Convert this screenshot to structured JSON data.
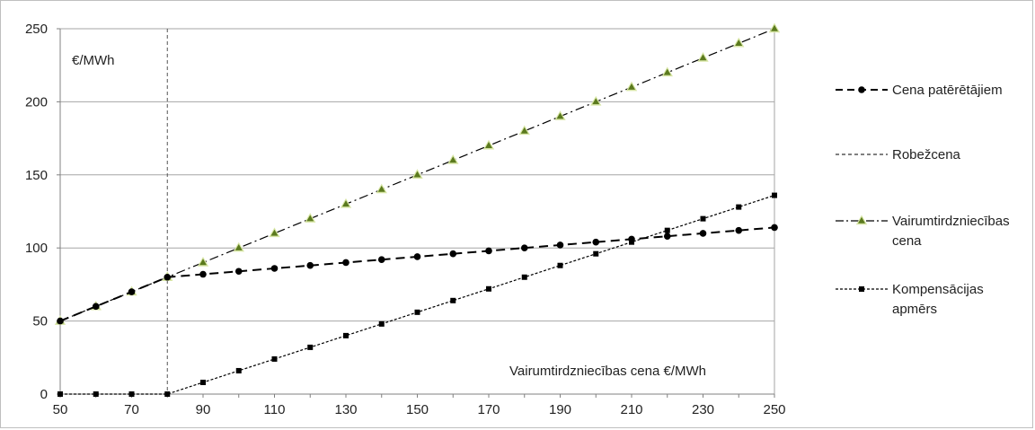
{
  "chart_data": {
    "type": "line",
    "title": "",
    "xlabel": "Vairumtirdzniecības cena €/MWh",
    "ylabel": "€/MWh",
    "xlim": [
      50,
      250
    ],
    "ylim": [
      0,
      250
    ],
    "x_ticks": [
      50,
      70,
      90,
      110,
      130,
      150,
      170,
      190,
      210,
      230,
      250
    ],
    "y_ticks": [
      0,
      50,
      100,
      150,
      200,
      250
    ],
    "grid": "horizontal",
    "legend_position": "right",
    "reference_line": {
      "name": "Robežcena",
      "x": 80
    },
    "x": [
      50,
      60,
      70,
      80,
      90,
      100,
      110,
      120,
      130,
      140,
      150,
      160,
      170,
      180,
      190,
      200,
      210,
      220,
      230,
      240,
      250
    ],
    "series": [
      {
        "name": "Cena patērētājiem",
        "marker": "circle",
        "values": [
          50,
          60,
          70,
          80,
          82,
          84,
          86,
          88,
          90,
          92,
          94,
          96,
          98,
          100,
          102,
          104,
          106,
          108,
          110,
          112,
          114
        ]
      },
      {
        "name": "Vairumtirdzniecības cena",
        "marker": "triangle",
        "values": [
          50,
          60,
          70,
          80,
          90,
          100,
          110,
          120,
          130,
          140,
          150,
          160,
          170,
          180,
          190,
          200,
          210,
          220,
          230,
          240,
          250
        ]
      },
      {
        "name": "Kompensācijas apmērs",
        "marker": "square",
        "values": [
          0,
          0,
          0,
          0,
          8,
          16,
          24,
          32,
          40,
          48,
          56,
          64,
          72,
          80,
          88,
          96,
          104,
          112,
          120,
          128,
          136
        ]
      }
    ],
    "legend": [
      {
        "lines": [
          "Cena patērētājiem"
        ]
      },
      {
        "lines": [
          "Robežcena"
        ]
      },
      {
        "lines": [
          "Vairumtirdzniecības",
          "cena"
        ]
      },
      {
        "lines": [
          "Kompensācijas",
          "apmērs"
        ]
      }
    ],
    "colors": {
      "axis": "#808080",
      "grid": "#a6a6a6",
      "series_line": "#000000",
      "triangle_fill": "#5b7a1e",
      "triangle_halo": "#d8e6a6"
    }
  }
}
